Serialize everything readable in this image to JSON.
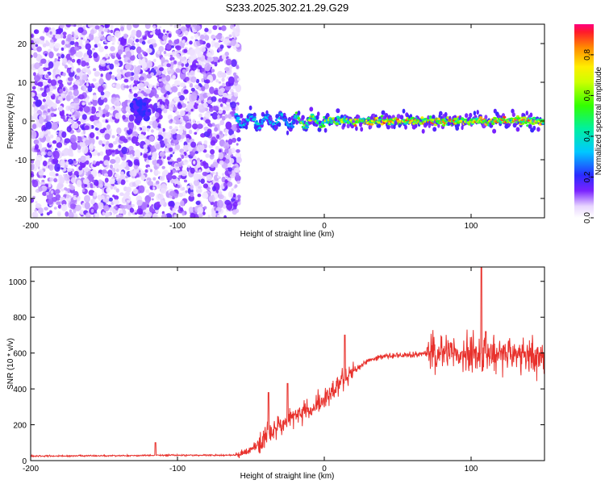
{
  "title": "S233.2025.302.21.29.G29",
  "chart_data": [
    {
      "type": "heatmap",
      "name": "spectrogram",
      "xlabel": "Height of straight line (km)",
      "ylabel": "Frequency (Hz)",
      "xlim": [
        -200,
        150
      ],
      "ylim": [
        -25,
        25
      ],
      "xticks": [
        -200,
        -100,
        0,
        100
      ],
      "yticks": [
        -20,
        -10,
        0,
        10,
        20
      ],
      "colorbar": {
        "label": "Normalized spectral amplitude",
        "range": [
          0.0,
          0.95
        ],
        "ticks": [
          0.0,
          0.2,
          0.4,
          0.6,
          0.8
        ]
      },
      "regions": [
        {
          "x_range": [
            -200,
            -60
          ],
          "description": "scattered low-amplitude noise across all frequencies"
        },
        {
          "x_range": [
            -60,
            150
          ],
          "freq_center": 0,
          "description": "narrow band near 0 Hz, amplitude rising to ~0.9"
        }
      ]
    },
    {
      "type": "line",
      "name": "snr",
      "xlabel": "Height of straight line (km)",
      "ylabel": "SNR (10 * v/v)",
      "xlim": [
        -200,
        150
      ],
      "ylim": [
        0,
        1080
      ],
      "xticks": [
        -200,
        -100,
        0,
        100
      ],
      "yticks": [
        0,
        200,
        400,
        600,
        800,
        1000
      ],
      "color": "#e8312c",
      "profile": [
        [
          -200,
          25
        ],
        [
          -130,
          28
        ],
        [
          -110,
          30
        ],
        [
          -60,
          30
        ],
        [
          -50,
          60
        ],
        [
          -40,
          130
        ],
        [
          -30,
          200
        ],
        [
          -20,
          250
        ],
        [
          -10,
          280
        ],
        [
          0,
          340
        ],
        [
          10,
          420
        ],
        [
          20,
          500
        ],
        [
          30,
          560
        ],
        [
          40,
          580
        ],
        [
          50,
          585
        ],
        [
          60,
          590
        ],
        [
          70,
          600
        ],
        [
          80,
          620
        ],
        [
          90,
          600
        ],
        [
          100,
          590
        ],
        [
          110,
          600
        ],
        [
          120,
          600
        ],
        [
          130,
          580
        ],
        [
          140,
          590
        ],
        [
          150,
          570
        ]
      ],
      "spikes": [
        [
          -115,
          100
        ],
        [
          -38,
          380
        ],
        [
          -25,
          430
        ],
        [
          14,
          700
        ],
        [
          107,
          1080
        ],
        [
          110,
          720
        ]
      ]
    }
  ]
}
